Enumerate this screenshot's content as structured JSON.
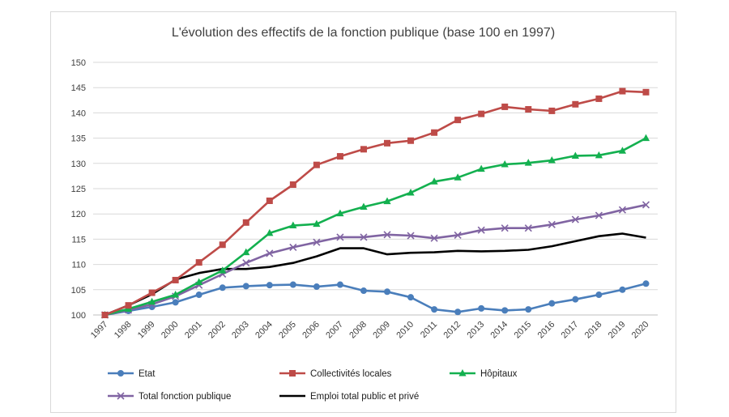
{
  "chart_data": {
    "type": "line",
    "title": "L'évolution des effectifs de la fonction publique  (base 100 en 1997)",
    "xlabel": "",
    "ylabel": "",
    "ylim": [
      100,
      150
    ],
    "yticks": [
      100,
      105,
      110,
      115,
      120,
      125,
      130,
      135,
      140,
      145,
      150
    ],
    "grid": true,
    "legend_position": "bottom",
    "x": [
      "1997",
      "1998",
      "1999",
      "2000",
      "2001",
      "2002",
      "2003",
      "2004",
      "2005",
      "2006",
      "2007",
      "2008",
      "2009",
      "2010",
      "2011",
      "2012",
      "2013",
      "2014",
      "2015",
      "2016",
      "2017",
      "2018",
      "2019",
      "2020"
    ],
    "series": [
      {
        "name": "Etat",
        "color": "#4a7ebb",
        "marker": "circle",
        "values": [
          100,
          100.8,
          101.6,
          102.5,
          104,
          105.4,
          105.7,
          105.9,
          106,
          105.6,
          106,
          104.8,
          104.6,
          103.5,
          101.1,
          100.6,
          101.3,
          100.9,
          101.1,
          102.3,
          103.1,
          104,
          105,
          106.2
        ]
      },
      {
        "name": "Collectivités locales",
        "color": "#be4b48",
        "marker": "square",
        "values": [
          100,
          101.9,
          104.4,
          106.9,
          110.4,
          113.9,
          118.3,
          122.6,
          125.8,
          129.7,
          131.4,
          132.8,
          134,
          134.5,
          136.1,
          138.6,
          139.8,
          141.2,
          140.7,
          140.4,
          141.7,
          142.8,
          144.3,
          144.1
        ]
      },
      {
        "name": "Hôpitaux",
        "color": "#13b04f",
        "marker": "triangle",
        "values": [
          100,
          101.2,
          102.6,
          104,
          106.5,
          108.8,
          112.4,
          116.2,
          117.7,
          118,
          120.1,
          121.4,
          122.5,
          124.2,
          126.4,
          127.2,
          128.9,
          129.8,
          130.1,
          130.6,
          131.5,
          131.6,
          132.5,
          135
        ]
      },
      {
        "name": "Total fonction publique",
        "color": "#8064a2",
        "marker": "x",
        "values": [
          100,
          101,
          102.1,
          103.7,
          105.9,
          108.1,
          110.3,
          112.2,
          113.4,
          114.4,
          115.4,
          115.4,
          115.9,
          115.7,
          115.2,
          115.8,
          116.8,
          117.2,
          117.2,
          117.9,
          118.9,
          119.7,
          120.8,
          121.8
        ]
      },
      {
        "name": "Emploi total public et privé",
        "color": "#000000",
        "marker": "none",
        "values": [
          100,
          101.9,
          104.1,
          107,
          108.3,
          109.1,
          109.1,
          109.5,
          110.3,
          111.6,
          113.2,
          113.2,
          112,
          112.3,
          112.4,
          112.7,
          112.6,
          112.7,
          112.9,
          113.6,
          114.6,
          115.6,
          116.1,
          115.3
        ]
      }
    ]
  }
}
